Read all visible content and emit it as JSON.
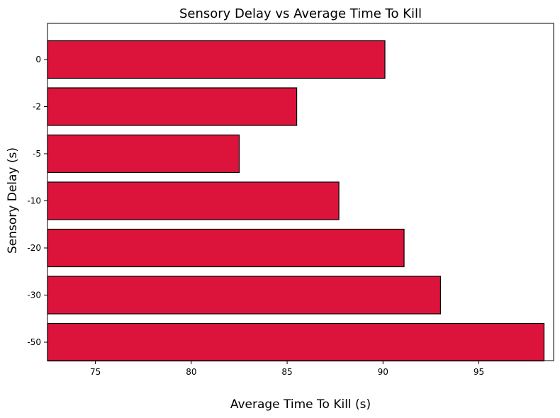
{
  "chart_data": {
    "type": "bar",
    "orientation": "horizontal",
    "title": "Sensory Delay vs Average Time To Kill",
    "xlabel": "Average Time To Kill (s)",
    "ylabel": "Sensory Delay (s)",
    "categories": [
      "0",
      "-2",
      "-5",
      "-10",
      "-20",
      "-30",
      "-50"
    ],
    "values": [
      90.1,
      85.5,
      82.5,
      87.7,
      91.1,
      93.0,
      98.4
    ],
    "xlim": [
      72.5,
      98.9
    ],
    "xticks": [
      "75",
      "80",
      "85",
      "90",
      "95"
    ],
    "grid": false,
    "bar_color": "#DC143C",
    "edge_color": "#000000"
  }
}
